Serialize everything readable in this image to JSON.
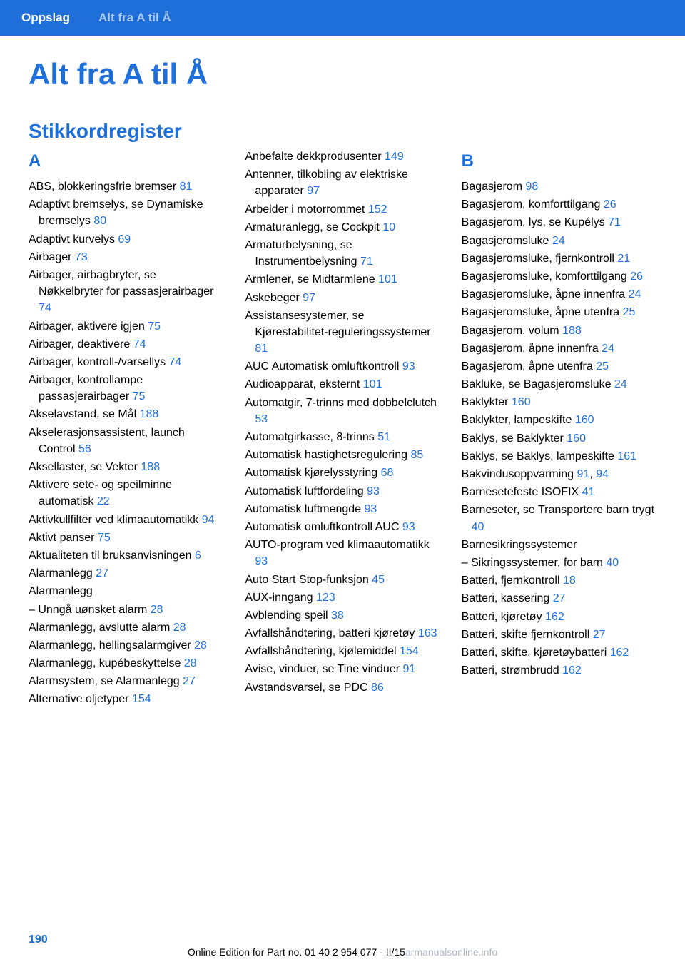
{
  "header": {
    "tab1": "Oppslag",
    "tab2": "Alt fra A til Å"
  },
  "main_title": "Alt fra A til Å",
  "sub_title": "Stikkordregister",
  "columns": [
    {
      "letter": "A",
      "entries": [
        {
          "text": "ABS, blokkeringsfrie bremser ",
          "page": "81"
        },
        {
          "text": "Adaptivt bremselys, se Dynamiske bremselys ",
          "page": "80"
        },
        {
          "text": "Adaptivt kurvelys ",
          "page": "69"
        },
        {
          "text": "Airbager ",
          "page": "73"
        },
        {
          "text": "Airbager, airbagbryter, se Nøkkelbryter for passasjerairbager ",
          "page": "74"
        },
        {
          "text": "Airbager, aktivere igjen ",
          "page": "75"
        },
        {
          "text": "Airbager, deaktivere ",
          "page": "74"
        },
        {
          "text": "Airbager, kontroll-/varsellys ",
          "page": "74"
        },
        {
          "text": "Airbager, kontrollampe passasjerairbager ",
          "page": "75"
        },
        {
          "text": "Akselavstand, se Mål ",
          "page": "188"
        },
        {
          "text": "Akselerasjonsassistent, launch Control ",
          "page": "56"
        },
        {
          "text": "Aksellaster, se Vekter ",
          "page": "188"
        },
        {
          "text": "Aktivere sete- og speilminne automatisk ",
          "page": "22"
        },
        {
          "text": "Aktivkullfilter ved klimaautomatikk ",
          "page": "94"
        },
        {
          "text": "Aktivt panser ",
          "page": "75"
        },
        {
          "text": "Aktualiteten til bruksanvisningen ",
          "page": "6"
        },
        {
          "text": "Alarmanlegg ",
          "page": "27"
        },
        {
          "text": "Alarmanlegg",
          "page": ""
        },
        {
          "text": "– Unngå uønsket alarm ",
          "page": "28"
        },
        {
          "text": "Alarmanlegg, avslutte alarm ",
          "page": "28"
        },
        {
          "text": "Alarmanlegg, hellingsalarmgiver ",
          "page": "28"
        },
        {
          "text": "Alarmanlegg, kupébeskyttelse ",
          "page": "28"
        },
        {
          "text": "Alarmsystem, se Alarmanlegg ",
          "page": "27"
        },
        {
          "text": "Alternative oljetyper ",
          "page": "154"
        }
      ]
    },
    {
      "entries": [
        {
          "text": "Anbefalte dekkprodusenter ",
          "page": "149"
        },
        {
          "text": "Antenner, tilkobling av elektriske apparater ",
          "page": "97"
        },
        {
          "text": "Arbeider i motorrommet ",
          "page": "152"
        },
        {
          "text": "Armaturanlegg, se Cockpit ",
          "page": "10"
        },
        {
          "text": "Armaturbelysning, se Instrumentbelysning ",
          "page": "71"
        },
        {
          "text": "Armlener, se Midtarmlene ",
          "page": "101"
        },
        {
          "text": "Askebeger ",
          "page": "97"
        },
        {
          "text": "Assistansesystemer, se Kjørestabilitet-reguleringssystemer ",
          "page": "81"
        },
        {
          "text": "AUC Automatisk omluftkontroll ",
          "page": "93"
        },
        {
          "text": "Audioapparat, eksternt ",
          "page": "101"
        },
        {
          "text": "Automatgir, 7-trinns med dobbelclutch ",
          "page": "53"
        },
        {
          "text": "Automatgirkasse, 8-trinns ",
          "page": "51"
        },
        {
          "text": "Automatisk hastighetsregulering ",
          "page": "85"
        },
        {
          "text": "Automatisk kjørelysstyring ",
          "page": "68"
        },
        {
          "text": "Automatisk luftfordeling ",
          "page": "93"
        },
        {
          "text": "Automatisk luftmengde ",
          "page": "93"
        },
        {
          "text": "Automatisk omluftkontroll AUC ",
          "page": "93"
        },
        {
          "text": "AUTO-program ved klimaautomatikk ",
          "page": "93"
        },
        {
          "text": "Auto Start Stop-funksjon ",
          "page": "45"
        },
        {
          "text": "AUX-inngang ",
          "page": "123"
        },
        {
          "text": "Avblending speil ",
          "page": "38"
        },
        {
          "text": "Avfallshåndtering, batteri kjøretøy ",
          "page": "163"
        },
        {
          "text": "Avfallshåndtering, kjølemiddel ",
          "page": "154"
        },
        {
          "text": "Avise, vinduer, se Tine vinduer ",
          "page": "91"
        },
        {
          "text": "Avstandsvarsel, se PDC ",
          "page": "86"
        }
      ]
    },
    {
      "letter": "B",
      "entries": [
        {
          "text": "Bagasjerom ",
          "page": "98"
        },
        {
          "text": "Bagasjerom, komforttilgang ",
          "page": "26"
        },
        {
          "text": "Bagasjerom, lys, se Kupélys ",
          "page": "71"
        },
        {
          "text": "Bagasjeromsluke ",
          "page": "24"
        },
        {
          "text": "Bagasjeromsluke, fjernkontroll ",
          "page": "21"
        },
        {
          "text": "Bagasjeromsluke, komforttilgang ",
          "page": "26"
        },
        {
          "text": "Bagasjeromsluke, åpne innenfra ",
          "page": "24"
        },
        {
          "text": "Bagasjeromsluke, åpne utenfra ",
          "page": "25"
        },
        {
          "text": "Bagasjerom, volum ",
          "page": "188"
        },
        {
          "text": "Bagasjerom, åpne innenfra ",
          "page": "24"
        },
        {
          "text": "Bagasjerom, åpne utenfra ",
          "page": "25"
        },
        {
          "text": "Bakluke, se Bagasjeromsluke ",
          "page": "24"
        },
        {
          "text": "Baklykter ",
          "page": "160"
        },
        {
          "text": "Baklykter, lampeskifte ",
          "page": "160"
        },
        {
          "text": "Baklys, se Baklykter ",
          "page": "160"
        },
        {
          "text": "Baklys, se Baklys, lampeskifte ",
          "page": "161"
        },
        {
          "text": "Bakvindusoppvarming ",
          "page": "91",
          "page2": "94"
        },
        {
          "text": "Barnesetefeste ISOFIX ",
          "page": "41"
        },
        {
          "text": "Barneseter, se Transportere barn trygt ",
          "page": "40"
        },
        {
          "text": "Barnesikringssystemer",
          "page": ""
        },
        {
          "text": "– Sikringssystemer, for barn ",
          "page": "40"
        },
        {
          "text": "Batteri, fjernkontroll ",
          "page": "18"
        },
        {
          "text": "Batteri, kassering ",
          "page": "27"
        },
        {
          "text": "Batteri, kjøretøy ",
          "page": "162"
        },
        {
          "text": "Batteri, skifte fjernkontroll ",
          "page": "27"
        },
        {
          "text": "Batteri, skifte, kjøretøybatteri ",
          "page": "162"
        },
        {
          "text": "Batteri, strømbrudd ",
          "page": "162"
        }
      ]
    }
  ],
  "footer": {
    "page_num": "190",
    "edition": "Online Edition for Part no. 01 40 2 954 077 - II/15",
    "watermark": "armanualsonline.info"
  }
}
